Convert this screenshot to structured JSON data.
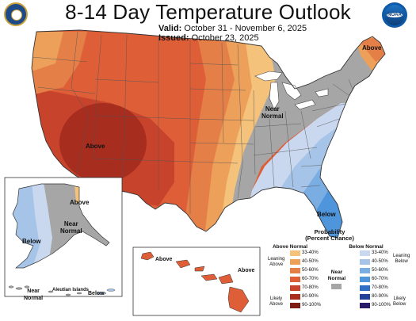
{
  "header": {
    "title": "8-14 Day Temperature Outlook",
    "valid_label": "Valid:",
    "valid_value": "October 31 - November 6, 2025",
    "issued_label": "Issued:",
    "issued_value": "October 23, 2025"
  },
  "map_labels": {
    "above_west": "Above",
    "above_northeast": "Above",
    "near_normal_central": "Near\nNormal",
    "below_southeast": "Below",
    "alaska_above": "Above",
    "alaska_near_normal": "Near\nNormal",
    "alaska_below": "Below",
    "alaska_islands_near_normal": "Near\nNormal",
    "aleutian_islands": "Aleutian Islands",
    "alaska_islands_below": "Below",
    "hawaii_above_left": "Above",
    "hawaii_above_right": "Above"
  },
  "legend": {
    "title": "Probability\n(Percent Chance)",
    "above_header": "Above Normal",
    "below_header": "Below Normal",
    "near_normal": "Near\nNormal",
    "leaning_above": "Leaning\nAbove",
    "likely_above": "Likely\nAbove",
    "leaning_below": "Leaning\nBelow",
    "likely_below": "Likely\nBelow",
    "ranges": [
      "33-40%",
      "40-50%",
      "50-60%",
      "60-70%",
      "70-80%",
      "80-90%",
      "90-100%"
    ],
    "above_colors": [
      "#f4c27b",
      "#eda05a",
      "#e57f48",
      "#de5e38",
      "#c8432c",
      "#a72d1f",
      "#7d1d14"
    ],
    "below_colors": [
      "#c9d8ef",
      "#a5c4e8",
      "#7aaee2",
      "#4f95dc",
      "#2f6fc6",
      "#24419a",
      "#2a1a6a"
    ],
    "near_normal_color": "#a6a6a6"
  },
  "logos": {
    "left": "usda-seal-icon",
    "right": "noaa-logo-icon",
    "right_text": "NOAA"
  }
}
